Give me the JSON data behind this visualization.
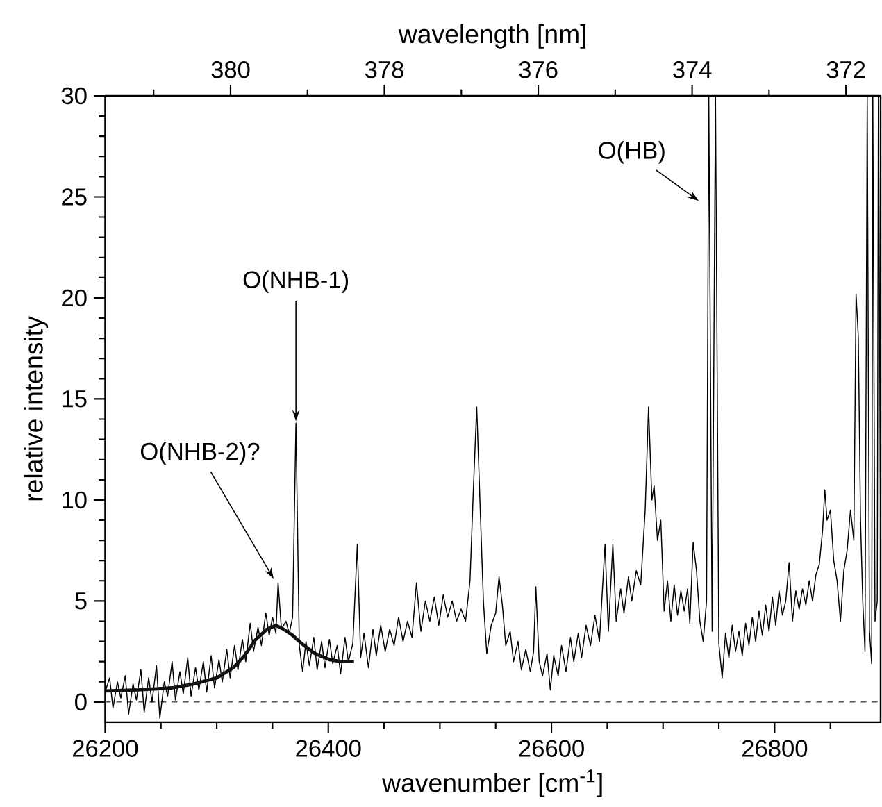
{
  "chart_data": {
    "type": "line",
    "xlabel": "wavenumber [cm$^{-1}$]",
    "ylabel": "relative intensity",
    "x2label": "wavelength [nm]",
    "xlim": [
      26200,
      26895
    ],
    "ylim": [
      -1,
      30
    ],
    "x2lim": [
      381.63,
      371.55
    ],
    "xticks": [
      26200,
      {
        "value": 26250,
        "label": null
      },
      {
        "value": 26300,
        "label": null
      },
      {
        "value": 26350,
        "label": null
      },
      26400,
      {
        "value": 26450,
        "label": null
      },
      {
        "value": 26500,
        "label": null
      },
      {
        "value": 26550,
        "label": null
      },
      26600,
      {
        "value": 26650,
        "label": null
      },
      {
        "value": 26700,
        "label": null
      },
      {
        "value": 26750,
        "label": null
      },
      26800,
      {
        "value": 26850,
        "label": null
      }
    ],
    "yticks": [
      0,
      {
        "value": 1,
        "label": null
      },
      {
        "value": 2,
        "label": null
      },
      {
        "value": 3,
        "label": null
      },
      {
        "value": 4,
        "label": null
      },
      5,
      {
        "value": 6,
        "label": null
      },
      {
        "value": 7,
        "label": null
      },
      {
        "value": 8,
        "label": null
      },
      {
        "value": 9,
        "label": null
      },
      10,
      {
        "value": 11,
        "label": null
      },
      {
        "value": 12,
        "label": null
      },
      {
        "value": 13,
        "label": null
      },
      {
        "value": 14,
        "label": null
      },
      15,
      {
        "value": 16,
        "label": null
      },
      {
        "value": 17,
        "label": null
      },
      {
        "value": 18,
        "label": null
      },
      {
        "value": 19,
        "label": null
      },
      20,
      {
        "value": 21,
        "label": null
      },
      {
        "value": 22,
        "label": null
      },
      {
        "value": 23,
        "label": null
      },
      {
        "value": 24,
        "label": null
      },
      25,
      {
        "value": 26,
        "label": null
      },
      {
        "value": 27,
        "label": null
      },
      {
        "value": 28,
        "label": null
      },
      {
        "value": 29,
        "label": null
      },
      30
    ],
    "x2ticks": [
      {
        "value": 381,
        "label": null
      },
      380,
      {
        "value": 379,
        "label": null
      },
      378,
      {
        "value": 377,
        "label": null
      },
      376,
      {
        "value": 375,
        "label": null
      },
      374,
      {
        "value": 373,
        "label": null
      },
      372
    ],
    "grid": false,
    "marker": "none",
    "ref_lines": [
      {
        "axis": "y",
        "value": 0,
        "color": "#555555",
        "line_style": "dashed"
      }
    ],
    "annotations": [
      {
        "text": "O(NHB-2)?",
        "x": 26351,
        "y": 6.1
      },
      {
        "text": "O(NHB-1)",
        "x": 26371,
        "y": 13.8
      },
      {
        "text": "O(HB)",
        "x": 26741,
        "y": 30
      }
    ],
    "series": [
      {
        "color": "#000000",
        "x": [
          26200,
          26204,
          26207,
          26211,
          26214,
          26218,
          26221,
          26225,
          26228,
          26232,
          26235,
          26239,
          26242,
          26246,
          26249,
          26253,
          26256,
          26260,
          26263,
          26267,
          26270,
          26274,
          26277,
          26281,
          26284,
          26288,
          26291,
          26295,
          26298,
          26302,
          26305,
          26309,
          26312,
          26316,
          26319,
          26323,
          26326,
          26330,
          26333,
          26337,
          26340,
          26344,
          26347,
          26350,
          26353,
          26355,
          26358,
          26362,
          26365,
          26368,
          26371,
          26374,
          26377,
          26380,
          26383,
          26387,
          26390,
          26394,
          26397,
          26401,
          26404,
          26408,
          26411,
          26415,
          26418,
          26422,
          26426,
          26429,
          26432,
          26436,
          26440,
          26443,
          26447,
          26451,
          26455,
          26459,
          26463,
          26467,
          26471,
          26475,
          26479,
          26483,
          26487,
          26491,
          26495,
          26499,
          26503,
          26507,
          26511,
          26515,
          26519,
          26523,
          26527,
          26530,
          26533,
          26536,
          26539,
          26542,
          26546,
          26550,
          26553,
          26556,
          26559,
          26563,
          26566,
          26570,
          26573,
          26577,
          26581,
          26584,
          26586,
          26589,
          26592,
          26596,
          26599,
          26602,
          26606,
          26609,
          26613,
          26617,
          26620,
          26624,
          26627,
          26631,
          26635,
          26639,
          26643,
          26648,
          26651,
          26655,
          26658,
          26662,
          26665,
          26669,
          26672,
          26676,
          26680,
          26684,
          26687,
          26690,
          26692,
          26695,
          26698,
          26701,
          26704,
          26707,
          26710,
          26713,
          26716,
          26719,
          26722,
          26724,
          26727,
          26730,
          26733,
          26736,
          26739,
          26741,
          26744,
          26747,
          26750,
          26753,
          26756,
          26759,
          26762,
          26765,
          26768,
          26771,
          26774,
          26777,
          26780,
          26783,
          26786,
          26789,
          26792,
          26795,
          26798,
          26801,
          26804,
          26807,
          26810,
          26813,
          26816,
          26819,
          26822,
          26825,
          26828,
          26831,
          26834,
          26837,
          26840,
          26843,
          26845,
          26847,
          26850,
          26853,
          26856,
          26859,
          26862,
          26865,
          26868,
          26871,
          26873,
          26875,
          26877,
          26879,
          26881,
          26883,
          26885,
          26887,
          26888,
          26890,
          26892,
          26893,
          26895
        ],
        "values": [
          0.5,
          1.2,
          -0.3,
          1.0,
          0.2,
          1.3,
          -0.6,
          0.9,
          0.1,
          1.6,
          -0.5,
          1.2,
          0.0,
          1.8,
          -0.8,
          1.0,
          0.3,
          2.0,
          0.1,
          1.5,
          0.4,
          2.2,
          0.3,
          1.7,
          0.6,
          2.0,
          0.5,
          2.3,
          0.7,
          2.1,
          1.0,
          2.6,
          1.2,
          2.8,
          1.6,
          3.1,
          2.0,
          3.9,
          2.5,
          3.7,
          2.8,
          4.4,
          3.3,
          4.2,
          3.4,
          5.9,
          3.6,
          4.0,
          3.4,
          4.2,
          13.8,
          2.8,
          1.5,
          3.0,
          1.8,
          3.2,
          1.6,
          3.0,
          1.7,
          3.1,
          1.9,
          2.8,
          1.4,
          3.2,
          2.0,
          2.9,
          7.8,
          2.2,
          3.4,
          1.7,
          3.6,
          2.3,
          3.8,
          2.5,
          3.6,
          2.8,
          4.2,
          3.0,
          4.0,
          3.2,
          5.9,
          3.5,
          5.0,
          4.0,
          5.2,
          3.8,
          5.3,
          4.2,
          5.0,
          4.0,
          4.6,
          4.0,
          6.0,
          10.5,
          14.6,
          9.8,
          5.0,
          2.4,
          3.8,
          4.4,
          6.2,
          4.8,
          2.8,
          3.5,
          2.0,
          3.0,
          1.6,
          2.6,
          1.5,
          2.5,
          5.7,
          2.0,
          1.3,
          2.4,
          0.6,
          2.3,
          1.3,
          2.8,
          1.5,
          3.2,
          2.0,
          3.4,
          2.2,
          3.8,
          2.8,
          4.3,
          3.0,
          7.8,
          3.5,
          7.8,
          4.0,
          5.6,
          4.4,
          6.2,
          5.0,
          6.5,
          5.8,
          9.5,
          14.6,
          10.0,
          10.7,
          8.0,
          9.0,
          4.5,
          6.0,
          4.0,
          5.8,
          4.3,
          5.5,
          4.5,
          5.6,
          3.9,
          7.9,
          6.5,
          4.0,
          3.0,
          5.0,
          30,
          3.5,
          30,
          2.9,
          1.2,
          3.4,
          2.2,
          3.8,
          2.5,
          3.5,
          2.3,
          3.9,
          2.8,
          4.2,
          3.0,
          4.5,
          3.3,
          4.8,
          3.5,
          5.2,
          3.8,
          5.5,
          4.3,
          5.0,
          6.9,
          4.0,
          5.5,
          4.6,
          5.6,
          4.8,
          6.0,
          5.0,
          6.3,
          6.8,
          8.5,
          10.5,
          9.0,
          9.5,
          7.0,
          6.0,
          4.0,
          6.5,
          7.5,
          9.5,
          8.0,
          20.2,
          18.1,
          9.0,
          5.0,
          2.5,
          30,
          3.5,
          1.9,
          30,
          4.0,
          5.0,
          30,
          8.0
        ]
      },
      {
        "color": "#111111",
        "x": [
          26200,
          26230,
          26260,
          26280,
          26300,
          26315,
          26325,
          26335,
          26345,
          26353,
          26360,
          26368,
          26376,
          26388,
          26401,
          26412,
          26423
        ],
        "values": [
          0.55,
          0.6,
          0.7,
          0.9,
          1.2,
          1.7,
          2.3,
          3.1,
          3.6,
          3.8,
          3.6,
          3.3,
          2.9,
          2.4,
          2.1,
          2.0,
          2.0
        ]
      }
    ]
  }
}
